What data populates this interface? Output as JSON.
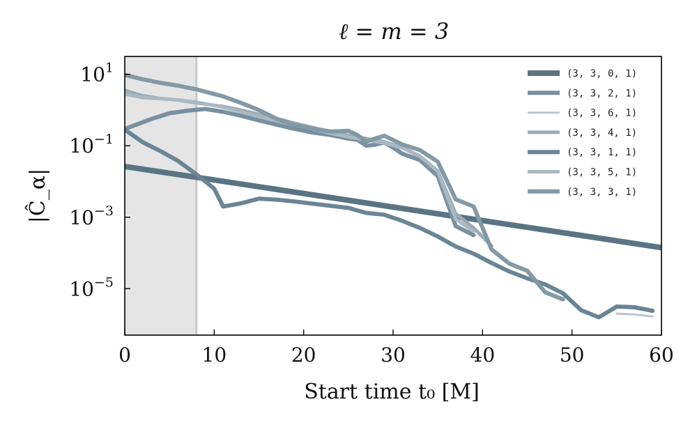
{
  "chart_data": {
    "type": "line",
    "title": "ℓ = m = 3",
    "xlabel": "Start time t₀ [M]",
    "ylabel": "|Ĉ_α|",
    "x_ticks": [
      "0",
      "10",
      "20",
      "30",
      "40",
      "50",
      "60"
    ],
    "y_ticks": [
      {
        "base": "10",
        "exp": "1"
      },
      {
        "base": "10",
        "exp": "−1"
      },
      {
        "base": "10",
        "exp": "−3"
      },
      {
        "base": "10",
        "exp": "−5"
      }
    ],
    "xlim": [
      0,
      60
    ],
    "ylim_log10": [
      -6.3,
      1.5
    ],
    "shaded_region": [
      0,
      8
    ],
    "legend_position": "top-right",
    "colors": {
      "c0": "#5a7483",
      "c2": "#7890a0",
      "c6": "#b8c6cf",
      "c4": "#9aabb7",
      "c1": "#6a8595",
      "c5": "#a9b8c3",
      "c3": "#8399a6",
      "shade": "#e5e5e5",
      "shade_edge": "#c9c9c9"
    },
    "series": [
      {
        "name": "(3, 3, 0, 1)",
        "color": "c0",
        "width": 8,
        "x": [
          0,
          60
        ],
        "log10_y": [
          -1.58,
          -3.85
        ]
      },
      {
        "name": "(3, 3, 2, 1)",
        "color": "c2",
        "width": 6,
        "x": [
          0,
          3,
          5,
          7,
          9,
          11,
          13,
          15,
          17,
          19,
          21,
          23,
          25,
          26,
          27,
          28,
          29,
          30,
          31,
          33,
          35,
          37,
          39
        ],
        "log10_y": [
          -0.53,
          -0.25,
          -0.09,
          -0.02,
          0.03,
          -0.05,
          -0.16,
          -0.29,
          -0.41,
          -0.53,
          -0.63,
          -0.7,
          -0.8,
          -0.83,
          -1.0,
          -0.97,
          -0.91,
          -1.05,
          -1.22,
          -1.4,
          -1.85,
          -3.25,
          -3.5
        ]
      },
      {
        "name": "(3, 3, 6, 1)",
        "color": "c6",
        "width": 3,
        "x": [
          55,
          57,
          59
        ],
        "log10_y": [
          -5.7,
          -5.72,
          -5.78
        ]
      },
      {
        "name": "(3, 3, 4, 1)",
        "color": "c4",
        "width": 5,
        "x": [
          0,
          2,
          4,
          6,
          8,
          11,
          13,
          15,
          17,
          19,
          21,
          23,
          25,
          27,
          29,
          31,
          33,
          35,
          37,
          39,
          41
        ],
        "log10_y": [
          0.55,
          0.4,
          0.32,
          0.28,
          0.2,
          0.1,
          0.0,
          -0.12,
          -0.24,
          -0.37,
          -0.49,
          -0.61,
          -0.71,
          -0.8,
          -0.89,
          -1.05,
          -1.29,
          -1.71,
          -2.9,
          -3.3,
          -3.8
        ]
      },
      {
        "name": "(3, 3, 1, 1)",
        "color": "c1",
        "width": 6,
        "x": [
          0,
          2,
          4,
          6,
          8,
          10,
          11,
          13,
          15,
          17,
          19,
          21,
          23,
          25,
          27,
          29,
          31,
          33,
          35,
          37,
          39,
          41,
          43,
          45,
          47,
          49,
          51,
          53,
          55,
          57,
          59
        ],
        "log10_y": [
          -0.55,
          -0.9,
          -1.15,
          -1.43,
          -1.8,
          -2.2,
          -2.7,
          -2.61,
          -2.48,
          -2.51,
          -2.56,
          -2.62,
          -2.68,
          -2.74,
          -2.88,
          -2.93,
          -3.1,
          -3.3,
          -3.54,
          -3.82,
          -4.02,
          -4.28,
          -4.52,
          -4.71,
          -4.88,
          -5.13,
          -5.6,
          -5.8,
          -5.5,
          -5.52,
          -5.62
        ]
      },
      {
        "name": "(3, 3, 5, 1)",
        "color": "c5",
        "width": 5,
        "x": [
          0,
          2,
          4,
          6,
          8,
          11,
          13,
          15,
          17,
          19,
          21,
          23,
          25,
          27,
          29,
          31,
          33,
          35,
          37,
          39
        ],
        "log10_y": [
          0.45,
          0.35,
          0.32,
          0.28,
          0.22,
          0.08,
          -0.05,
          -0.18,
          -0.3,
          -0.42,
          -0.53,
          -0.65,
          -0.75,
          -0.84,
          -0.92,
          -1.06,
          -1.3,
          -1.72,
          -3.05,
          -3.4
        ]
      },
      {
        "name": "(3, 3, 3, 1)",
        "color": "c3",
        "width": 6,
        "x": [
          0,
          2,
          4,
          6,
          8,
          11,
          13,
          15,
          17,
          19,
          21,
          23,
          25,
          26,
          27,
          28,
          29,
          31,
          33,
          35,
          37,
          39,
          41,
          43,
          45,
          47,
          49
        ],
        "log10_y": [
          0.98,
          0.86,
          0.76,
          0.68,
          0.58,
          0.38,
          0.2,
          0.0,
          -0.25,
          -0.42,
          -0.52,
          -0.6,
          -0.58,
          -0.7,
          -0.88,
          -0.8,
          -0.72,
          -0.96,
          -1.12,
          -1.45,
          -2.5,
          -2.7,
          -3.9,
          -4.3,
          -4.5,
          -5.1,
          -5.3
        ]
      }
    ]
  }
}
